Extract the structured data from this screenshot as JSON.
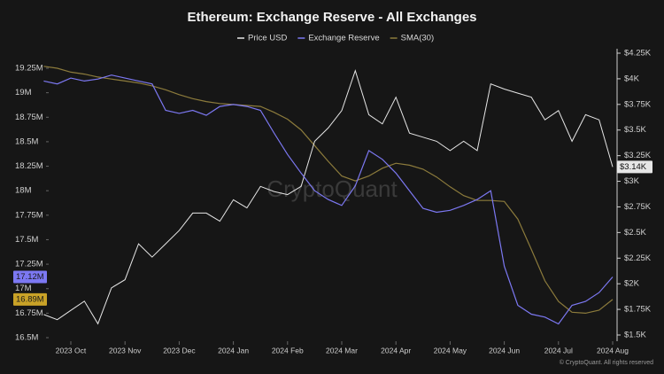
{
  "chart_data": {
    "type": "line",
    "title": "Ethereum: Exchange Reserve - All Exchanges",
    "watermark": "CryptoQuant",
    "footer": "© CryptoQuant. All rights reserved",
    "categories": [
      null,
      null,
      "2023 Oct",
      null,
      null,
      null,
      "2023 Nov",
      null,
      null,
      null,
      "2023 Dec",
      null,
      null,
      null,
      "2024 Jan",
      null,
      null,
      null,
      "2024 Feb",
      null,
      null,
      null,
      "2024 Mar",
      null,
      null,
      null,
      "2024 Apr",
      null,
      null,
      null,
      "2024 May",
      null,
      null,
      null,
      "2024 Jun",
      null,
      null,
      null,
      "2024 Jul",
      null,
      null,
      null,
      "2024 Aug"
    ],
    "ylim": [
      16500000,
      19250000
    ],
    "yticks": [
      {
        "value": 16500000,
        "label": "16.5M"
      },
      {
        "value": 16750000,
        "label": "16.75M"
      },
      {
        "value": 17000000,
        "label": "17M"
      },
      {
        "value": 17250000,
        "label": "17.25M"
      },
      {
        "value": 17500000,
        "label": "17.5M"
      },
      {
        "value": 17750000,
        "label": "17.75M"
      },
      {
        "value": 18000000,
        "label": "18M"
      },
      {
        "value": 18250000,
        "label": "18.25M"
      },
      {
        "value": 18500000,
        "label": "18.5M"
      },
      {
        "value": 18750000,
        "label": "18.75M"
      },
      {
        "value": 19000000,
        "label": "19M"
      },
      {
        "value": 19250000,
        "label": "19.25M"
      }
    ],
    "y2lim": [
      1500,
      4250
    ],
    "y2ticks": [
      {
        "value": 1500,
        "label": "$1.5K"
      },
      {
        "value": 1750,
        "label": "$1.75K"
      },
      {
        "value": 2000,
        "label": "$2K"
      },
      {
        "value": 2250,
        "label": "$2.25K"
      },
      {
        "value": 2500,
        "label": "$2.5K"
      },
      {
        "value": 2750,
        "label": "$2.75K"
      },
      {
        "value": 3000,
        "label": "$3K"
      },
      {
        "value": 3250,
        "label": "$3.25K"
      },
      {
        "value": 3500,
        "label": "$3.5K"
      },
      {
        "value": 3750,
        "label": "$3.75K"
      },
      {
        "value": 4000,
        "label": "$4K"
      },
      {
        "value": 4250,
        "label": "$4.25K"
      }
    ],
    "series": [
      {
        "name": "Price USD",
        "color": "#e6e6e6",
        "axis": "y2",
        "last_value_label": "$3.14K",
        "values": [
          1700,
          1650,
          1740,
          1830,
          1610,
          1960,
          2040,
          2390,
          2260,
          2390,
          2520,
          2690,
          2690,
          2610,
          2820,
          2740,
          2950,
          2900,
          2870,
          2950,
          3390,
          3520,
          3690,
          4080,
          3650,
          3560,
          3820,
          3470,
          3430,
          3390,
          3300,
          3390,
          3300,
          3950,
          3900,
          3860,
          3820,
          3600,
          3690,
          3390,
          3650,
          3600,
          3140
        ]
      },
      {
        "name": "Exchange Reserve",
        "color": "#7c78f2",
        "last_value_label": "17.12M",
        "values": [
          19120000,
          19090000,
          19150000,
          19120000,
          19140000,
          19180000,
          19150000,
          19120000,
          19090000,
          18820000,
          18790000,
          18820000,
          18770000,
          18860000,
          18880000,
          18860000,
          18820000,
          18590000,
          18370000,
          18180000,
          18000000,
          17910000,
          17850000,
          18050000,
          18410000,
          18320000,
          18180000,
          18000000,
          17820000,
          17780000,
          17800000,
          17850000,
          17910000,
          18000000,
          17230000,
          16830000,
          16740000,
          16710000,
          16640000,
          16830000,
          16870000,
          16960000,
          17120000
        ]
      },
      {
        "name": "SMA(30)",
        "color": "#8c7b3c",
        "tag_color": "#c9a227",
        "last_value_label": "16.89M",
        "values": [
          19270000,
          19250000,
          19210000,
          19190000,
          19160000,
          19140000,
          19120000,
          19100000,
          19070000,
          19030000,
          18980000,
          18940000,
          18910000,
          18890000,
          18880000,
          18870000,
          18860000,
          18800000,
          18730000,
          18620000,
          18460000,
          18300000,
          18150000,
          18100000,
          18150000,
          18230000,
          18280000,
          18260000,
          18220000,
          18140000,
          18040000,
          17950000,
          17900000,
          17900000,
          17890000,
          17710000,
          17400000,
          17080000,
          16870000,
          16760000,
          16750000,
          16780000,
          16890000
        ]
      }
    ]
  }
}
